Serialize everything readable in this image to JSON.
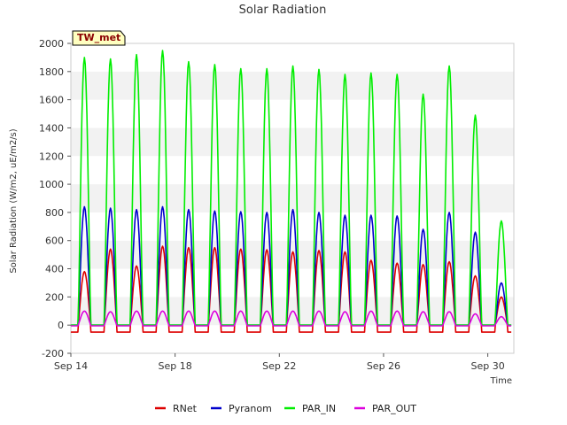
{
  "chart_data": {
    "type": "line",
    "title": "Solar Radiation",
    "xlabel": "Time",
    "ylabel": "Solar Radiation (W/m2, uE/m2/s)",
    "station_tag": "TW_met",
    "xlim": [
      "2023-09-14",
      "2023-10-01"
    ],
    "ylim": [
      -200,
      2000
    ],
    "yticks": [
      -200,
      0,
      200,
      400,
      600,
      800,
      1000,
      1200,
      1400,
      1600,
      1800,
      2000
    ],
    "xticks": [
      {
        "date": "2023-09-14",
        "label": "Sep 14"
      },
      {
        "date": "2023-09-18",
        "label": "Sep 18"
      },
      {
        "date": "2023-09-22",
        "label": "Sep 22"
      },
      {
        "date": "2023-09-26",
        "label": "Sep 26"
      },
      {
        "date": "2023-09-30",
        "label": "Sep 30"
      }
    ],
    "grid": "horizontal-bands",
    "legend_position": "bottom",
    "days": [
      "2023-09-14",
      "2023-09-15",
      "2023-09-16",
      "2023-09-17",
      "2023-09-18",
      "2023-09-19",
      "2023-09-20",
      "2023-09-21",
      "2023-09-22",
      "2023-09-23",
      "2023-09-24",
      "2023-09-25",
      "2023-09-26",
      "2023-09-27",
      "2023-09-28",
      "2023-09-29",
      "2023-09-30",
      "2023-10-01"
    ],
    "series": [
      {
        "name": "RNet",
        "color": "#dd0000",
        "night_value": -50,
        "daily_peak": [
          380,
          540,
          420,
          560,
          550,
          550,
          540,
          535,
          520,
          530,
          520,
          460,
          440,
          430,
          450,
          350,
          200
        ]
      },
      {
        "name": "Pyranom",
        "color": "#0000cc",
        "night_value": 0,
        "daily_peak": [
          840,
          830,
          820,
          840,
          820,
          810,
          805,
          800,
          820,
          800,
          780,
          780,
          775,
          680,
          800,
          660,
          300
        ]
      },
      {
        "name": "PAR_IN",
        "color": "#00ee00",
        "night_value": 0,
        "daily_peak": [
          1900,
          1890,
          1920,
          1950,
          1870,
          1850,
          1820,
          1820,
          1840,
          1815,
          1780,
          1790,
          1780,
          1640,
          1840,
          1490,
          740
        ]
      },
      {
        "name": "PAR_OUT",
        "color": "#dd00dd",
        "night_value": -5,
        "daily_peak": [
          100,
          95,
          100,
          100,
          100,
          100,
          100,
          100,
          100,
          100,
          95,
          100,
          100,
          95,
          95,
          80,
          60
        ]
      }
    ]
  }
}
